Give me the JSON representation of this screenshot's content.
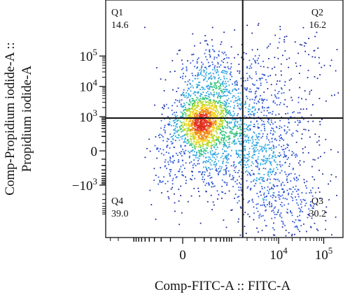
{
  "chart_data": {
    "type": "scatter",
    "subtype": "flow-cytometry-density-dot-plot",
    "xlabel": "Comp-FITC-A :: FITC-A",
    "ylabel_line1": "Comp-Propidium iodide-A ::",
    "ylabel_line2": "Propidium iodide-A",
    "x_scale": "biexponential",
    "y_scale": "biexponential",
    "x_ticks": [
      {
        "value": 0,
        "label": "0",
        "base": "",
        "exp": ""
      },
      {
        "value": 10000,
        "label": "",
        "base": "10",
        "exp": "4"
      },
      {
        "value": 100000,
        "label": "",
        "base": "10",
        "exp": "5"
      }
    ],
    "y_ticks": [
      {
        "value": 100000,
        "label": "",
        "base": "10",
        "exp": "5"
      },
      {
        "value": 10000,
        "label": "",
        "base": "10",
        "exp": "4"
      },
      {
        "value": 1000,
        "label": "",
        "base": "10",
        "exp": "3"
      },
      {
        "value": 0,
        "label": "0",
        "base": "",
        "exp": ""
      },
      {
        "value": -1000,
        "label": "",
        "base": "−10",
        "exp": "3"
      }
    ],
    "quadrant_gate": {
      "x_value": 1600,
      "y_value": 900
    },
    "quadrants": [
      {
        "name": "Q1",
        "percent": "14.6",
        "position": "top-left"
      },
      {
        "name": "Q2",
        "percent": "16.2",
        "position": "top-right"
      },
      {
        "name": "Q3",
        "percent": "30.2",
        "position": "bottom-right"
      },
      {
        "name": "Q4",
        "percent": "39.0",
        "position": "bottom-left"
      }
    ],
    "density_colors": [
      "#1e2a9e",
      "#2f57d4",
      "#2fa6e0",
      "#34c47a",
      "#b8d92a",
      "#f6d31e",
      "#f08a1c",
      "#e2301e"
    ],
    "grid": false,
    "legend": "none"
  }
}
